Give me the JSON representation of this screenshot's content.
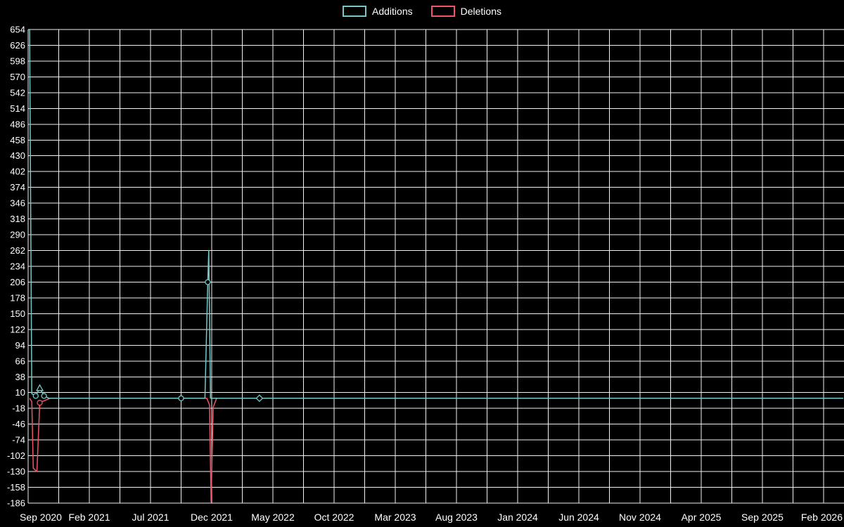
{
  "colors": {
    "background": "#000000",
    "grid": "#f0f0f0",
    "text": "#ffffff",
    "additions": "#76c7c7",
    "deletions": "#ee5566"
  },
  "legend": {
    "items": [
      {
        "label": "Additions",
        "color": "#76c7c7"
      },
      {
        "label": "Deletions",
        "color": "#ee5566"
      }
    ]
  },
  "chart_data": {
    "type": "line",
    "title": "",
    "xlabel": "",
    "ylabel": "",
    "grid": true,
    "legend_position": "top-center",
    "x_axis": {
      "tick_labels": [
        "Sep 2020",
        "Feb 2021",
        "Jul 2021",
        "Dec 2021",
        "May 2022",
        "Oct 2022",
        "Mar 2023",
        "Aug 2023",
        "Jan 2024",
        "Jun 2024",
        "Nov 2024",
        "Apr 2025",
        "Sep 2025",
        "Feb 2026"
      ],
      "months_per_label": 5,
      "grid_divisions_per_label": 2
    },
    "y_axis": {
      "max": 654,
      "min": -186,
      "step": 28,
      "tick_labels": [
        654,
        626,
        598,
        570,
        542,
        514,
        486,
        458,
        430,
        402,
        374,
        346,
        318,
        290,
        262,
        234,
        206,
        178,
        150,
        122,
        94,
        66,
        38,
        10,
        -18,
        -46,
        -74,
        -102,
        -130,
        -158,
        -186
      ]
    },
    "series": [
      {
        "name": "Additions",
        "color": "#76c7c7",
        "points": [
          [
            0.12,
            654
          ],
          [
            0.3,
            8
          ],
          [
            0.62,
            4
          ],
          [
            0.95,
            18
          ],
          [
            1.3,
            4
          ],
          [
            1.7,
            0
          ],
          [
            12.5,
            0
          ],
          [
            14.45,
            0
          ],
          [
            14.68,
            206
          ],
          [
            14.76,
            262
          ],
          [
            14.9,
            0
          ],
          [
            16.2,
            0
          ],
          [
            18.9,
            0
          ],
          [
            66.6,
            0
          ]
        ]
      },
      {
        "name": "Deletions",
        "color": "#ee5566",
        "points": [
          [
            0.12,
            0
          ],
          [
            0.3,
            -6
          ],
          [
            0.42,
            -124
          ],
          [
            0.72,
            -130
          ],
          [
            0.95,
            -8
          ],
          [
            1.35,
            -4
          ],
          [
            1.8,
            0
          ],
          [
            14.6,
            0
          ],
          [
            14.82,
            -12
          ],
          [
            14.95,
            -184
          ],
          [
            15.12,
            -16
          ],
          [
            15.4,
            0
          ],
          [
            66.6,
            0
          ]
        ]
      }
    ],
    "markers": [
      {
        "series": "Additions",
        "shape": "circle",
        "x": 0.62,
        "y": 4
      },
      {
        "series": "Additions",
        "shape": "triangle",
        "x": 0.95,
        "y": 18
      },
      {
        "series": "Additions",
        "shape": "circle",
        "x": 1.3,
        "y": 4
      },
      {
        "series": "Deletions",
        "shape": "circle",
        "x": 0.95,
        "y": -8
      },
      {
        "series": "Additions",
        "shape": "circle",
        "x": 12.5,
        "y": 0
      },
      {
        "series": "Additions",
        "shape": "circle",
        "x": 14.68,
        "y": 206
      },
      {
        "series": "Additions",
        "shape": "dash",
        "x": 16.2,
        "y": 0
      },
      {
        "series": "Additions",
        "shape": "diamond",
        "x": 18.9,
        "y": 0
      }
    ]
  }
}
